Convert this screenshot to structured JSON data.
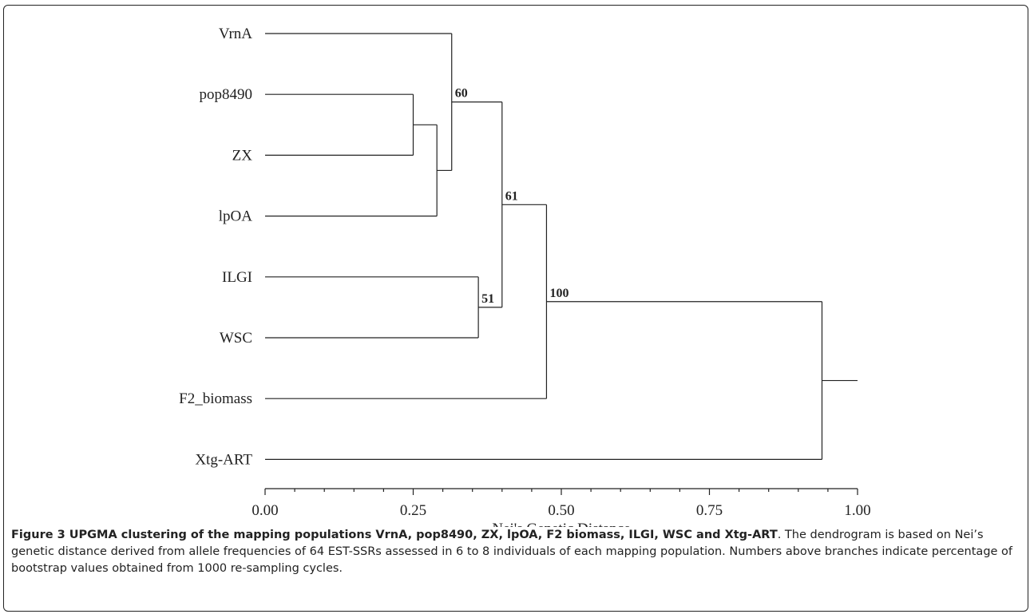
{
  "figure": {
    "leaves": [
      "VrnA",
      "pop8490",
      "ZX",
      "lpOA",
      "ILGI",
      "WSC",
      "F2_biomass",
      "Xtg-ART"
    ],
    "clusters": [
      {
        "id": "c_pop_zx",
        "children": [
          "pop8490",
          "ZX"
        ],
        "height": 0.25,
        "bootstrap": ""
      },
      {
        "id": "c_pop_zx_lpoa",
        "children": [
          "c_pop_zx",
          "lpOA"
        ],
        "height": 0.29,
        "bootstrap": ""
      },
      {
        "id": "c_vrna",
        "children": [
          "VrnA",
          "c_pop_zx_lpoa"
        ],
        "height": 0.315,
        "bootstrap": ""
      },
      {
        "id": "c_ilgi_wsc",
        "children": [
          "ILGI",
          "WSC"
        ],
        "height": 0.36,
        "bootstrap": ""
      },
      {
        "id": "c_60_51",
        "children": [
          "c_vrna",
          "c_ilgi_wsc"
        ],
        "height": 0.4,
        "bootstrap": ""
      },
      {
        "id": "c_f2",
        "children": [
          "c_60_51",
          "F2_biomass"
        ],
        "height": 0.475,
        "bootstrap": ""
      },
      {
        "id": "c_root",
        "children": [
          "c_f2",
          "Xtg-ART"
        ],
        "height": 0.94,
        "bootstrap": ""
      }
    ],
    "bootstrap_labels": [
      {
        "value": "60",
        "cluster": "c_vrna"
      },
      {
        "value": "61",
        "cluster": "c_60_51"
      },
      {
        "value": "51",
        "cluster": "c_ilgi_wsc"
      },
      {
        "value": "100",
        "cluster": "c_f2"
      }
    ],
    "axis": {
      "label": "Nei's Genetic Distance",
      "range": [
        0,
        1
      ],
      "ticks": [
        "0.00",
        "0.25",
        "0.50",
        "0.75",
        "1.00"
      ],
      "tick_values": [
        0,
        0.25,
        0.5,
        0.75,
        1.0
      ],
      "minor_step": 0.05
    },
    "colors": {
      "line": "#222222",
      "text": "#222222"
    }
  },
  "caption": {
    "lead": "Figure 3 UPGMA clustering of the mapping populations VrnA, pop8490, ZX, lpOA, F2 biomass, ILGI, WSC and Xtg-ART",
    "body": ". The dendrogram is based on Nei’s genetic distance derived from allele frequencies of 64 EST-SSRs assessed in 6 to 8 individuals of each mapping population. Numbers above branches indicate percentage of bootstrap values obtained from 1000 re-sampling cycles."
  }
}
